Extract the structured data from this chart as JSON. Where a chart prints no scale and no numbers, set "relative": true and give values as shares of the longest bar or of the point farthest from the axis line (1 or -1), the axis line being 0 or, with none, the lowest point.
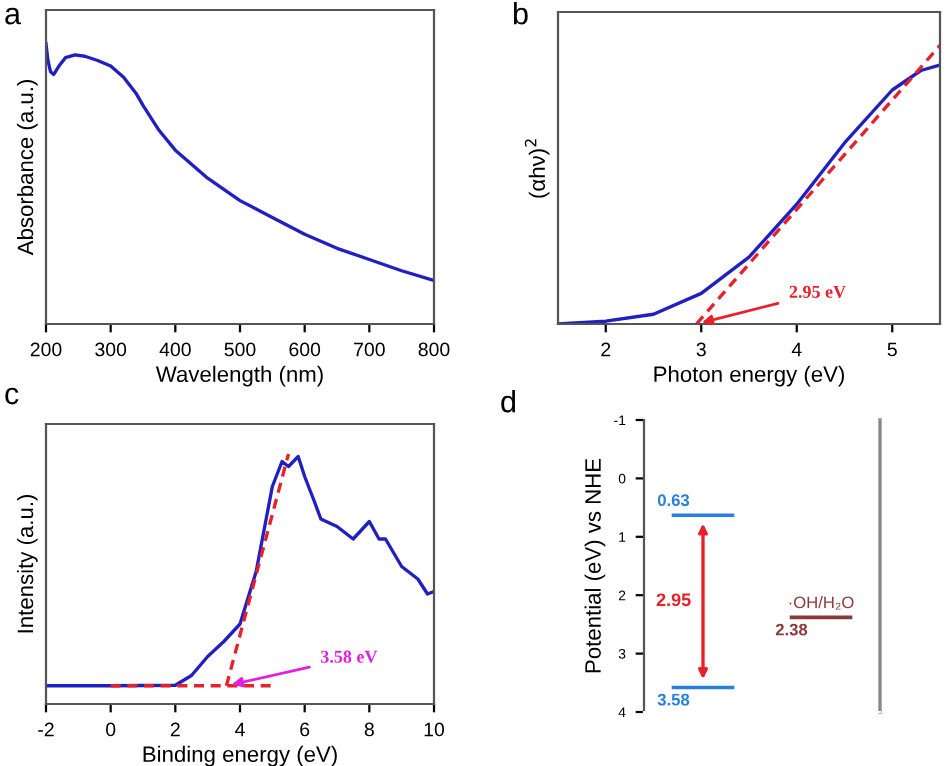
{
  "chart_data": [
    {
      "type": "line",
      "title": "a",
      "xlabel": "Wavelength (nm)",
      "ylabel": "Absorbance (a.u.)",
      "relative": true,
      "xlim": [
        200,
        800
      ],
      "xticks": [
        200,
        300,
        400,
        500,
        600,
        700,
        800
      ],
      "tick_labels": "x",
      "series": [
        {
          "color": "#2020c0",
          "x": [
            200,
            203,
            207,
            212,
            220,
            230,
            245,
            260,
            280,
            300,
            320,
            340,
            350,
            375,
            400,
            450,
            500,
            550,
            600,
            650,
            700,
            750,
            800
          ],
          "values": [
            1.0,
            0.94,
            0.9,
            0.89,
            0.92,
            0.95,
            0.96,
            0.955,
            0.94,
            0.92,
            0.88,
            0.82,
            0.78,
            0.69,
            0.62,
            0.52,
            0.44,
            0.38,
            0.32,
            0.27,
            0.23,
            0.19,
            0.155
          ]
        }
      ]
    },
    {
      "type": "line",
      "title": "b",
      "xlabel": "Photon energy (eV)",
      "ylabel": "(αhν)$^{2}$",
      "relative": true,
      "xlim": [
        1.5,
        5.5
      ],
      "xticks": [
        2,
        3,
        4,
        5
      ],
      "tick_labels": "x",
      "series": [
        {
          "color": "#2020c0",
          "x": [
            1.5,
            2,
            2.5,
            3,
            3.5,
            4,
            4.5,
            5,
            5.3,
            5.5
          ],
          "values": [
            0.0,
            0.01,
            0.035,
            0.11,
            0.24,
            0.43,
            0.65,
            0.84,
            0.91,
            0.93
          ]
        },
        {
          "color": "#e8202a",
          "line_style": "dashed",
          "x": [
            2.95,
            5.5
          ],
          "values": [
            0.0,
            1.0
          ]
        }
      ],
      "annotations": [
        {
          "text": "2.95 eV",
          "x": 2.95,
          "y": 0.0
        }
      ]
    },
    {
      "type": "line",
      "title": "c",
      "xlabel": "Binding energy (eV)",
      "ylabel": "Intensity (a.u.)",
      "relative": true,
      "xlim": [
        -2,
        10
      ],
      "xticks": [
        -2,
        0,
        2,
        4,
        6,
        8,
        10
      ],
      "tick_labels": "x",
      "series": [
        {
          "color": "#2020c0",
          "x": [
            -2,
            0,
            1,
            2,
            2.5,
            3,
            3.5,
            4,
            4.5,
            5,
            5.3,
            5.5,
            5.8,
            6,
            6.3,
            6.5,
            7,
            7.5,
            8,
            8.3,
            8.5,
            9,
            9.5,
            9.8,
            10
          ],
          "values": [
            0.073,
            0.073,
            0.074,
            0.075,
            0.114,
            0.19,
            0.25,
            0.32,
            0.53,
            0.87,
            0.97,
            0.95,
            0.99,
            0.91,
            0.81,
            0.74,
            0.71,
            0.66,
            0.73,
            0.66,
            0.66,
            0.55,
            0.5,
            0.44,
            0.45
          ]
        },
        {
          "color": "#e8202a",
          "line_style": "dashed",
          "x": [
            0,
            5
          ],
          "values": [
            0.073,
            0.073
          ]
        },
        {
          "color": "#e8202a",
          "line_style": "dashed",
          "x": [
            3.58,
            5.5
          ],
          "values": [
            0.073,
            1.0
          ]
        }
      ],
      "annotations": [
        {
          "text": "3.58 eV",
          "x": 3.58,
          "y": 0.073
        }
      ]
    },
    {
      "type": "line",
      "title": "d",
      "ylabel": "Potential (eV) vs NHE",
      "ylim": [
        4,
        -1
      ],
      "yticks": [
        -1,
        0,
        1,
        2,
        3,
        4
      ],
      "tick_labels": "y",
      "categories": [
        null,
        null,
        null,
        null
      ],
      "series": [
        {
          "color": "#2a7fdc",
          "values": [
            0.63,
            0.63,
            null,
            null
          ],
          "value_labels": [
            "0.63",
            null,
            null,
            null
          ]
        },
        {
          "color": "#2a7fdc",
          "values": [
            3.58,
            3.58,
            null,
            null
          ],
          "value_labels": [
            "3.58",
            null,
            null,
            null
          ]
        },
        {
          "name": "·OH/H₂O",
          "color": "#8b3a3a",
          "values": [
            null,
            null,
            2.38,
            2.38
          ],
          "value_labels": [
            null,
            null,
            "2.38",
            null
          ]
        }
      ],
      "annotations": [
        "2.95"
      ]
    }
  ]
}
